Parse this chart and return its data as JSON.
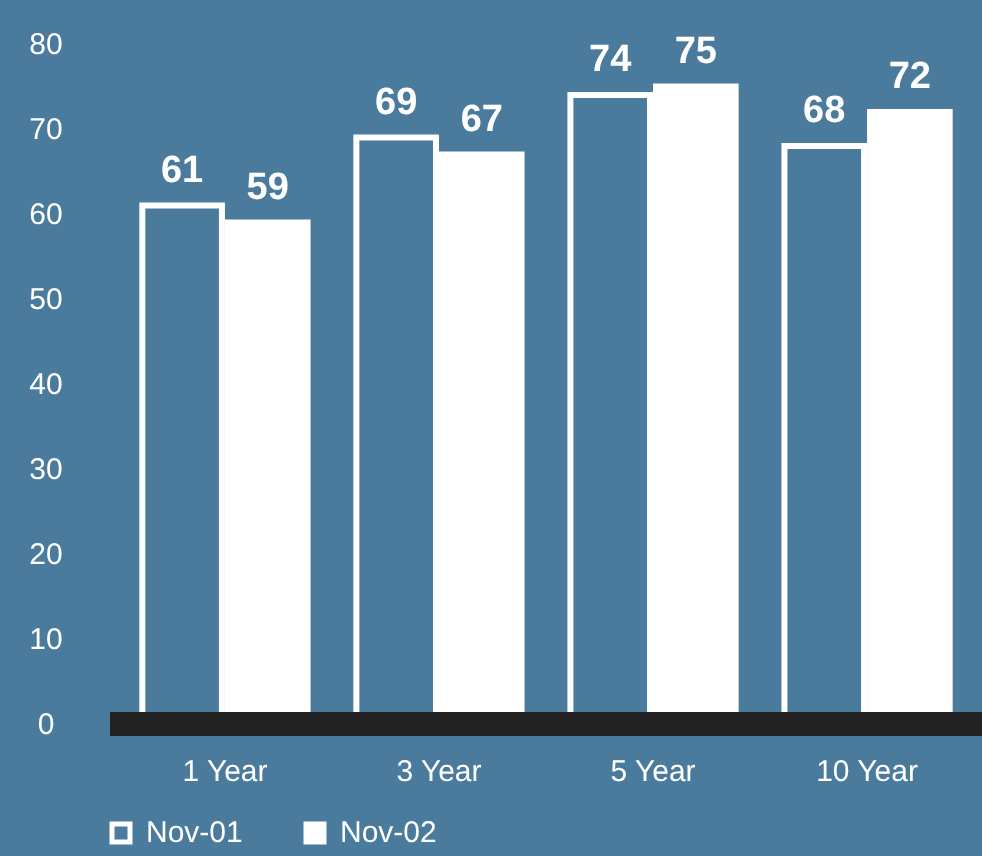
{
  "chart_data": {
    "type": "bar",
    "categories": [
      "1 Year",
      "3 Year",
      "5 Year",
      "10 Year"
    ],
    "series": [
      {
        "name": "Nov-01",
        "color": "#4a7b9c",
        "values": [
          61,
          69,
          74,
          68
        ]
      },
      {
        "name": "Nov-02",
        "color": "#ffffff",
        "values": [
          59,
          67,
          75,
          72
        ]
      }
    ],
    "ylim": [
      0,
      80
    ],
    "yticks": [
      0,
      10,
      20,
      30,
      40,
      50,
      60,
      70,
      80
    ],
    "data_labels": true,
    "grid": false,
    "legend": "bottom left"
  }
}
